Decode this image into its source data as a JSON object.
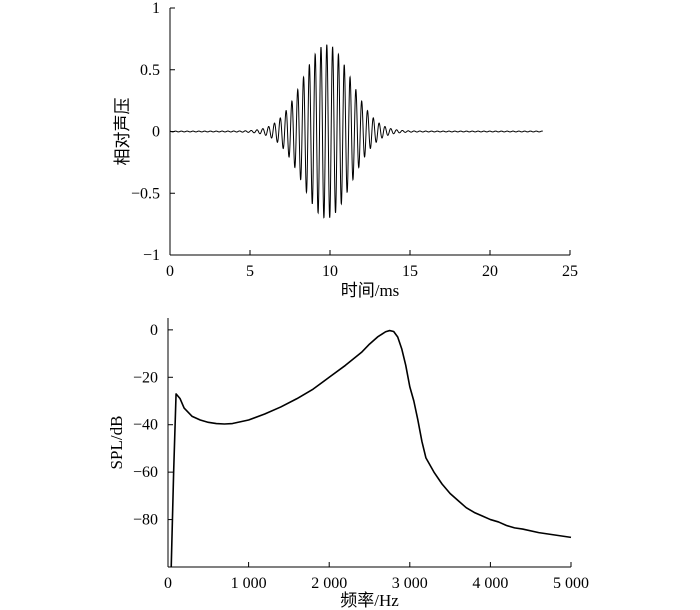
{
  "chart_data": [
    {
      "type": "line",
      "xlabel": "时间/ms",
      "ylabel": "相对声压",
      "xlim": [
        0,
        25
      ],
      "ylim": [
        -1,
        1
      ],
      "xticks": [
        0,
        5,
        10,
        15,
        20,
        25
      ],
      "xtick_labels": [
        "0",
        "5",
        "10",
        "15",
        "20",
        "25"
      ],
      "yticks": [
        1,
        0.5,
        0,
        -0.5,
        -1
      ],
      "ytick_labels": [
        "1",
        "0.5",
        "0",
        "−0.5",
        "−1"
      ],
      "grid": false,
      "series": [
        {
          "waveform": "tone burst (Gaussian-windowed sinusoid)",
          "x_range": [
            0,
            23.3
          ],
          "center": 9.8,
          "peak": 0.7,
          "min": -0.7,
          "carrier_frequency_khz": 2.75,
          "envelope_width_ms": 1.5
        }
      ]
    },
    {
      "type": "line",
      "xlabel": "频率/Hz",
      "ylabel": "SPL/dB",
      "xlim": [
        0,
        5000
      ],
      "ylim": [
        -100,
        5
      ],
      "xticks": [
        0,
        1000,
        2000,
        3000,
        4000,
        5000
      ],
      "xtick_labels": [
        "0",
        "1 000",
        "2 000",
        "3 000",
        "4 000",
        "5 000"
      ],
      "yticks": [
        0,
        -20,
        -40,
        -60,
        -80
      ],
      "ytick_labels": [
        "0",
        "−20",
        "−40",
        "−60",
        "−80"
      ],
      "grid": false,
      "series": [
        {
          "x": [
            40,
            70,
            100,
            150,
            200,
            300,
            400,
            500,
            600,
            700,
            800,
            1000,
            1200,
            1400,
            1600,
            1800,
            2000,
            2200,
            2400,
            2500,
            2600,
            2700,
            2750,
            2800,
            2850,
            2900,
            2950,
            3000,
            3050,
            3100,
            3150,
            3200,
            3300,
            3400,
            3500,
            3600,
            3700,
            3800,
            3900,
            4000,
            4100,
            4200,
            4300,
            4400,
            4600,
            4800,
            5000
          ],
          "y": [
            -100,
            -60,
            -27,
            -29,
            -33,
            -36.5,
            -38,
            -39,
            -39.5,
            -39.7,
            -39.5,
            -38,
            -35.5,
            -32.5,
            -29,
            -25,
            -20,
            -15,
            -9.5,
            -6,
            -3,
            -0.8,
            -0.3,
            -0.7,
            -3,
            -8,
            -15,
            -24,
            -30,
            -38,
            -47,
            -54,
            -60,
            -65,
            -69,
            -72,
            -75,
            -77,
            -78.5,
            -80,
            -81,
            -82.5,
            -83.5,
            -84,
            -85.5,
            -86.5,
            -87.5
          ]
        }
      ]
    }
  ]
}
